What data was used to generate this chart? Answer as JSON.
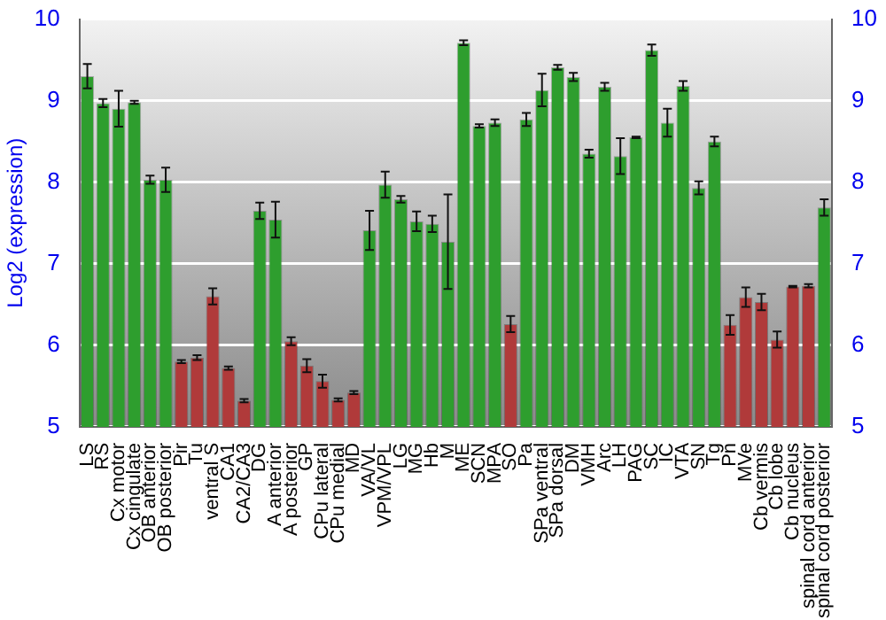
{
  "chart_data": {
    "type": "bar",
    "ylabel": "Log2 (expression)",
    "categories": [
      "LS",
      "RS",
      "Cx motor",
      "Cx cingulate",
      "OB anterior",
      "OB posterior",
      "Pir",
      "Tu",
      "ventral S",
      "CA1",
      "CA2/CA3",
      "DG",
      "A anterior",
      "A posterior",
      "GP",
      "CPu lateral",
      "CPu medial",
      "MD",
      "VA/VL",
      "VPM/VPL",
      "LG",
      "MG",
      "Hb",
      "M",
      "ME",
      "SCN",
      "MPA",
      "SO",
      "Pa",
      "SPa ventral",
      "SPa dorsal",
      "DM",
      "VMH",
      "Arc",
      "LH",
      "PAG",
      "SC",
      "IC",
      "VTA",
      "SN",
      "Tg",
      "Pn",
      "MVe",
      "Cb vermis",
      "Cb lobe",
      "Cb nucleus",
      "spinal cord anterior",
      "spinal cord posterior"
    ],
    "values": [
      9.3,
      8.97,
      8.9,
      8.98,
      8.03,
      8.03,
      5.8,
      5.85,
      6.6,
      5.72,
      5.32,
      7.65,
      7.54,
      6.05,
      5.75,
      5.56,
      5.33,
      5.42,
      7.41,
      7.97,
      7.79,
      7.52,
      7.49,
      7.27,
      9.71,
      8.69,
      8.73,
      6.26,
      8.77,
      9.13,
      9.41,
      9.29,
      8.35,
      9.17,
      8.32,
      8.55,
      9.62,
      8.73,
      9.18,
      7.93,
      8.5,
      6.25,
      6.59,
      6.53,
      6.07,
      6.72,
      6.73,
      7.69
    ],
    "errors": [
      0.15,
      0.05,
      0.22,
      0.02,
      0.05,
      0.15,
      0.02,
      0.03,
      0.1,
      0.02,
      0.02,
      0.1,
      0.22,
      0.05,
      0.08,
      0.08,
      0.02,
      0.02,
      0.24,
      0.16,
      0.04,
      0.12,
      0.1,
      0.58,
      0.03,
      0.02,
      0.04,
      0.1,
      0.08,
      0.2,
      0.03,
      0.05,
      0.05,
      0.05,
      0.22,
      0.01,
      0.07,
      0.17,
      0.06,
      0.08,
      0.06,
      0.12,
      0.12,
      0.1,
      0.1,
      0.01,
      0.02,
      0.1
    ],
    "colors": [
      "#2e9e2e",
      "#2e9e2e",
      "#2e9e2e",
      "#2e9e2e",
      "#2e9e2e",
      "#2e9e2e",
      "#b03a3a",
      "#b03a3a",
      "#b03a3a",
      "#b03a3a",
      "#b03a3a",
      "#2e9e2e",
      "#2e9e2e",
      "#b03a3a",
      "#b03a3a",
      "#b03a3a",
      "#b03a3a",
      "#b03a3a",
      "#2e9e2e",
      "#2e9e2e",
      "#2e9e2e",
      "#2e9e2e",
      "#2e9e2e",
      "#2e9e2e",
      "#2e9e2e",
      "#2e9e2e",
      "#2e9e2e",
      "#b03a3a",
      "#2e9e2e",
      "#2e9e2e",
      "#2e9e2e",
      "#2e9e2e",
      "#2e9e2e",
      "#2e9e2e",
      "#2e9e2e",
      "#2e9e2e",
      "#2e9e2e",
      "#2e9e2e",
      "#2e9e2e",
      "#2e9e2e",
      "#2e9e2e",
      "#b03a3a",
      "#b03a3a",
      "#b03a3a",
      "#b03a3a",
      "#b03a3a",
      "#b03a3a",
      "#2e9e2e"
    ],
    "ylim": [
      5,
      10
    ],
    "yticks": [
      5,
      6,
      7,
      8,
      9,
      10
    ],
    "y2lim": [
      5,
      10
    ],
    "y2ticks": [
      5,
      6,
      7,
      8,
      9,
      10
    ],
    "grid": "y",
    "legend": false
  }
}
